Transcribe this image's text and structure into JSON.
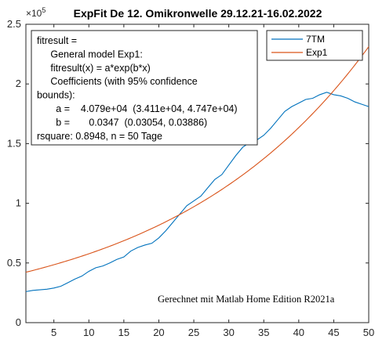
{
  "chart_data": {
    "type": "line",
    "title": "ExpFit De 12. Omikronwelle 29.12.21-16.02.2022",
    "xlabel": "",
    "ylabel": "",
    "xlim": [
      1,
      50
    ],
    "ylim": [
      0,
      250000
    ],
    "y_exponent_label": "×10",
    "y_exponent_power": "5",
    "x_ticks": [
      5,
      10,
      15,
      20,
      25,
      30,
      35,
      40,
      45,
      50
    ],
    "y_ticks": [
      0,
      50000,
      100000,
      150000,
      200000,
      250000
    ],
    "y_tick_labels": [
      "0",
      "0.5",
      "1",
      "1.5",
      "2",
      "2.5"
    ],
    "grid": false,
    "legend_position": "top-right",
    "series": [
      {
        "name": "7TM",
        "color": "#0072BD",
        "x": [
          1,
          2,
          3,
          4,
          5,
          6,
          7,
          8,
          9,
          10,
          11,
          12,
          13,
          14,
          15,
          16,
          17,
          18,
          19,
          20,
          21,
          22,
          23,
          24,
          25,
          26,
          27,
          28,
          29,
          30,
          31,
          32,
          33,
          34,
          35,
          36,
          37,
          38,
          39,
          40,
          41,
          42,
          43,
          44,
          45,
          46,
          47,
          48,
          49,
          50
        ],
        "y": [
          26000,
          27000,
          27500,
          28000,
          29000,
          30500,
          33500,
          36500,
          39000,
          43000,
          46000,
          47500,
          50000,
          53000,
          55000,
          60000,
          63000,
          65000,
          66500,
          71000,
          77000,
          84000,
          91000,
          98000,
          102000,
          106000,
          113000,
          120000,
          124000,
          132000,
          140000,
          147000,
          151000,
          153000,
          157000,
          163000,
          170000,
          177000,
          181000,
          184000,
          187000,
          188000,
          191000,
          193000,
          191000,
          190000,
          188000,
          185000,
          183000,
          181000
        ]
      },
      {
        "name": "Exp1",
        "color": "#D95319",
        "a": 40790,
        "b": 0.0347
      }
    ]
  },
  "fit_box": {
    "lines": [
      "fitresult =",
      "     General model Exp1:",
      "     fitresult(x) = a*exp(b*x)",
      "     Coefficients (with 95% confidence",
      "bounds):",
      "       a =    4.079e+04  (3.411e+04, 4.747e+04)",
      "       b =       0.0347  (0.03054, 0.03886)",
      "rsquare: 0.8948, n = 50 Tage"
    ]
  },
  "annotation": "Gerechnet mit Matlab Home Edition R2021a"
}
